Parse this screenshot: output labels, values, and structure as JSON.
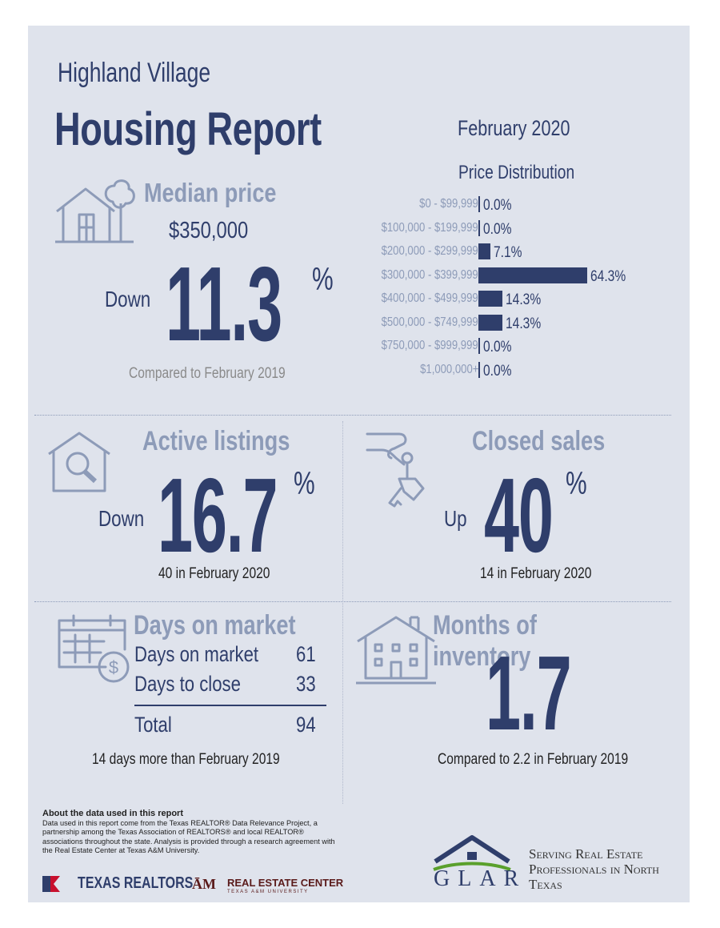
{
  "header": {
    "city": "Highland Village",
    "title": "Housing Report",
    "month": "February 2020"
  },
  "median": {
    "title": "Median price",
    "price": "$350,000",
    "direction": "Down",
    "value": "11.3",
    "unit": "%",
    "comparison": "Compared to February 2019"
  },
  "distribution": {
    "title": "Price Distribution",
    "rows": [
      {
        "label": "$0 - $99,999",
        "value": "0.0%"
      },
      {
        "label": "$100,000 - $199,999",
        "value": "0.0%"
      },
      {
        "label": "$200,000 - $299,999",
        "value": "7.1%"
      },
      {
        "label": "$300,000 - $399,999",
        "value": "64.3%"
      },
      {
        "label": "$400,000 - $499,999",
        "value": "14.3%"
      },
      {
        "label": "$500,000 - $749,999",
        "value": "14.3%"
      },
      {
        "label": "$750,000 - $999,999",
        "value": "0.0%"
      },
      {
        "label": "$1,000,000+",
        "value": "0.0%"
      }
    ]
  },
  "chart_data": {
    "type": "bar",
    "title": "Price Distribution",
    "categories": [
      "$0 - $99,999",
      "$100,000 - $199,999",
      "$200,000 - $299,999",
      "$300,000 - $399,999",
      "$400,000 - $499,999",
      "$500,000 - $749,999",
      "$750,000 - $999,999",
      "$1,000,000+"
    ],
    "values": [
      0.0,
      0.0,
      7.1,
      64.3,
      14.3,
      14.3,
      0.0,
      0.0
    ],
    "orientation": "horizontal",
    "xlim": [
      0,
      64.3
    ]
  },
  "active": {
    "title": "Active listings",
    "direction": "Down",
    "value": "16.7",
    "unit": "%",
    "note": "40 in February 2020"
  },
  "closed": {
    "title": "Closed sales",
    "direction": "Up",
    "value": "40",
    "unit": "%",
    "note": "14 in February 2020"
  },
  "days": {
    "title": "Days on market",
    "rows": [
      {
        "label": "Days on market",
        "value": "61"
      },
      {
        "label": "Days to close",
        "value": "33"
      }
    ],
    "total_label": "Total",
    "total_value": "94",
    "note": "14 days more than February 2019"
  },
  "inventory": {
    "title": "Months of inventory",
    "value": "1.7",
    "note": "Compared to 2.2 in February 2019"
  },
  "footer": {
    "about_heading": "About the data used in this report",
    "about_text": "Data used in this report come from the Texas REALTOR® Data Relevance Project, a partnership among the Texas Association of REALTORS® and local REALTOR® associations throughout the state. Analysis is provided through a research agreement with the Real Estate Center at Texas A&M University.",
    "texas_realtors": "TEXAS REALTORS",
    "rec_name": "REAL ESTATE CENTER",
    "rec_sub": "TEXAS A&M UNIVERSITY",
    "glar": "GLAR",
    "serving": "Serving Real Estate Professionals in North Texas"
  },
  "colors": {
    "navy": "#2f3e6b",
    "light_blue": "#8d9bb8",
    "background": "#dfe3ec"
  }
}
